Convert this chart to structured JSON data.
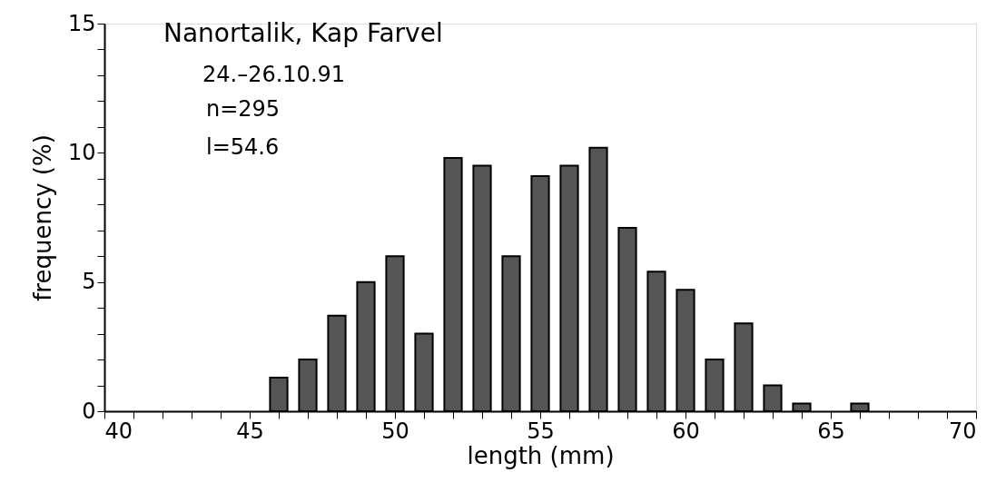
{
  "chart_data": {
    "type": "bar",
    "xlabel": "length (mm)",
    "ylabel": "frequency (%)",
    "annotations": [
      "Nanortalik, Kap Farvel",
      "24.–26.10.91",
      "n=295",
      "l=54.6"
    ],
    "x": [
      46,
      47,
      48,
      49,
      50,
      51,
      52,
      53,
      54,
      55,
      56,
      57,
      58,
      59,
      60,
      61,
      62,
      63,
      64,
      66
    ],
    "values": [
      1.3,
      2.0,
      3.7,
      5.0,
      6.0,
      3.0,
      9.8,
      9.5,
      6.0,
      9.1,
      9.5,
      10.2,
      7.1,
      5.4,
      4.7,
      2.0,
      3.4,
      1.0,
      0.3,
      0.3
    ],
    "color": "#555555",
    "xlim": [
      40,
      70
    ],
    "xticks": [
      40,
      {
        "value": 41,
        "label": null
      },
      {
        "value": 42,
        "label": null
      },
      {
        "value": 43,
        "label": null
      },
      {
        "value": 44,
        "label": null
      },
      45,
      {
        "value": 46,
        "label": null
      },
      {
        "value": 47,
        "label": null
      },
      {
        "value": 48,
        "label": null
      },
      {
        "value": 49,
        "label": null
      },
      50,
      {
        "value": 51,
        "label": null
      },
      {
        "value": 52,
        "label": null
      },
      {
        "value": 53,
        "label": null
      },
      {
        "value": 54,
        "label": null
      },
      55,
      {
        "value": 56,
        "label": null
      },
      {
        "value": 57,
        "label": null
      },
      {
        "value": 58,
        "label": null
      },
      {
        "value": 59,
        "label": null
      },
      60,
      {
        "value": 61,
        "label": null
      },
      {
        "value": 62,
        "label": null
      },
      {
        "value": 63,
        "label": null
      },
      {
        "value": 64,
        "label": null
      },
      65,
      {
        "value": 66,
        "label": null
      },
      {
        "value": 67,
        "label": null
      },
      {
        "value": 68,
        "label": null
      },
      {
        "value": 69,
        "label": null
      },
      70
    ],
    "ylim": [
      0,
      15
    ],
    "yticks": [
      0,
      {
        "value": 1,
        "label": null
      },
      {
        "value": 2,
        "label": null
      },
      {
        "value": 3,
        "label": null
      },
      {
        "value": 4,
        "label": null
      },
      5,
      {
        "value": 6,
        "label": null
      },
      {
        "value": 7,
        "label": null
      },
      {
        "value": 8,
        "label": null
      },
      {
        "value": 9,
        "label": null
      },
      10,
      {
        "value": 11,
        "label": null
      },
      {
        "value": 12,
        "label": null
      },
      {
        "value": 13,
        "label": null
      },
      {
        "value": 14,
        "label": null
      },
      15
    ],
    "grid": false
  }
}
